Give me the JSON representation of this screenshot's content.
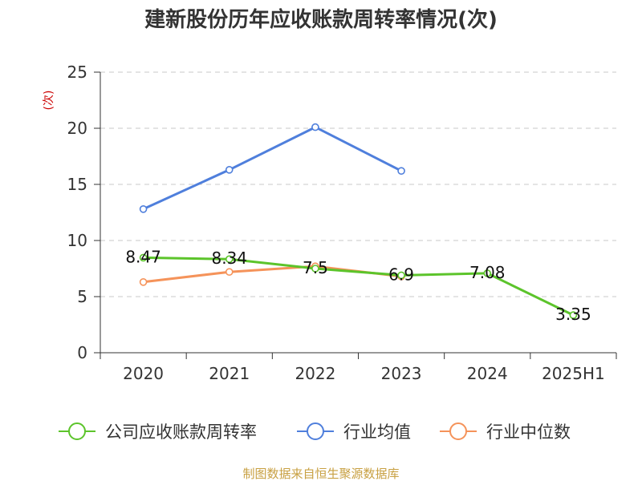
{
  "chart_data": {
    "type": "line",
    "title": "建新股份历年应收账款周转率情况(次)",
    "ylabel": "(次)",
    "xlabel": "",
    "categories": [
      "2020",
      "2021",
      "2022",
      "2023",
      "2024",
      "2025H1"
    ],
    "ylim": [
      0,
      25
    ],
    "yticks": [
      0,
      5,
      10,
      15,
      20,
      25
    ],
    "grid": true,
    "legend_position": "bottom",
    "series": [
      {
        "name": "公司应收账款周转率",
        "color": "#5cc42b",
        "values": [
          8.47,
          8.34,
          7.5,
          6.9,
          7.08,
          3.35
        ],
        "labels": [
          "8.47",
          "8.34",
          "7.5",
          "6.9",
          "7.08",
          "3.35"
        ]
      },
      {
        "name": "行业均值",
        "color": "#4f7fdc",
        "values": [
          12.8,
          16.3,
          20.1,
          16.2,
          null,
          null
        ]
      },
      {
        "name": "行业中位数",
        "color": "#f5935a",
        "values": [
          6.3,
          7.2,
          7.7,
          6.8,
          null,
          null
        ]
      }
    ]
  },
  "source": "制图数据来自恒生聚源数据库"
}
